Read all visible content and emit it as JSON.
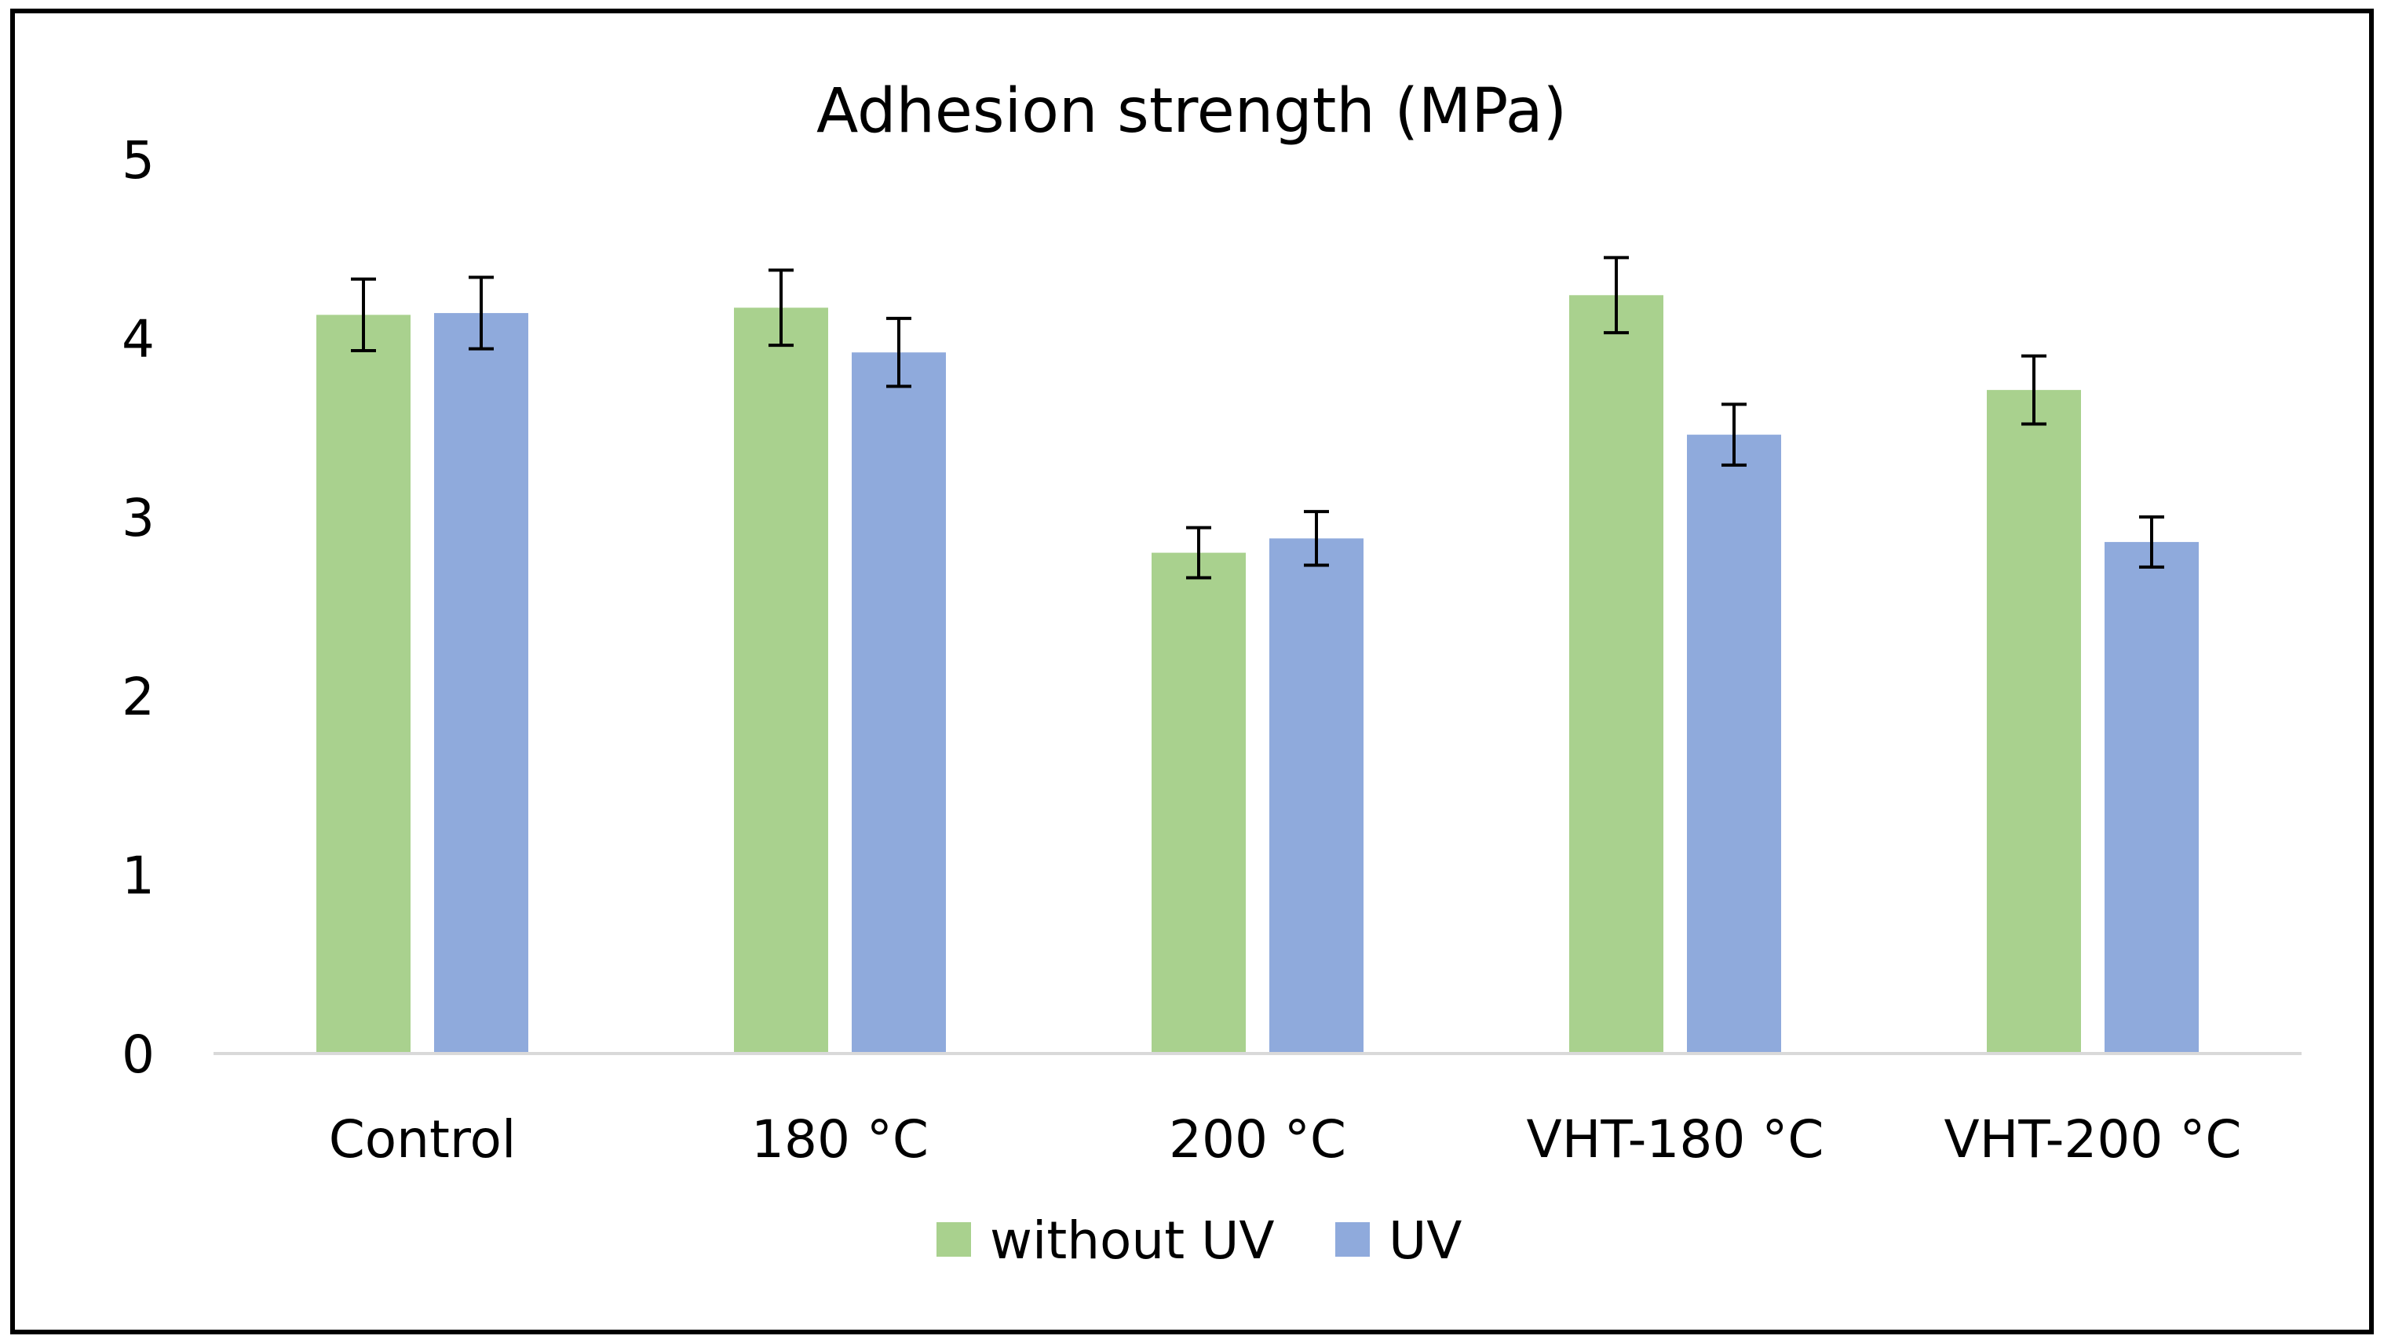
{
  "chart_data": {
    "type": "bar",
    "title": "Adhesion strength  (MPa)",
    "xlabel": "",
    "ylabel": "",
    "categories": [
      "Control",
      "180 °C",
      "200 °C",
      "VHT-180 °C",
      "VHT-200 °C"
    ],
    "series": [
      {
        "name": "without UV",
        "color": "#a9d18e",
        "values": [
          4.13,
          4.17,
          2.8,
          4.24,
          3.71
        ],
        "errors": [
          0.2,
          0.21,
          0.14,
          0.21,
          0.19
        ]
      },
      {
        "name": "UV",
        "color": "#8faadc",
        "values": [
          4.14,
          3.92,
          2.88,
          3.46,
          2.86
        ],
        "errors": [
          0.2,
          0.19,
          0.15,
          0.17,
          0.14
        ]
      }
    ],
    "ylim": [
      0,
      5
    ],
    "yticks": [
      0,
      1,
      2,
      3,
      4,
      5
    ],
    "legend_position": "bottom",
    "grid": false,
    "axis_color": "#d9d9d9",
    "error_bar_color": "#000000",
    "frame_color": "#000000"
  }
}
